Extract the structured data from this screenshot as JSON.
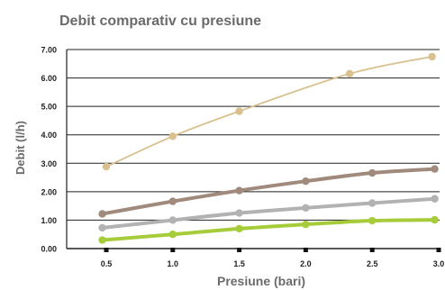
{
  "chart_data": {
    "type": "line",
    "title": "Debit comparativ cu presiune",
    "xlabel": "Presiune (bari)",
    "ylabel": "Debit (l/h)",
    "x_ticks": [
      "0.5",
      "1.0",
      "1.5",
      "2.0",
      "2.5",
      "3.0"
    ],
    "y_ticks": [
      "0.00",
      "1.00",
      "2.00",
      "3.00",
      "4.00",
      "5.00",
      "6.00",
      "7.00"
    ],
    "xlim": [
      0.5,
      3.0
    ],
    "ylim": [
      0,
      7
    ],
    "grid": "horizontal",
    "legend": "none",
    "series": [
      {
        "color": "#d8c08f",
        "line_width": "thin",
        "points": [
          [
            0.5,
            2.88
          ],
          [
            1.0,
            3.95
          ],
          [
            1.5,
            4.83
          ],
          [
            2.33,
            6.15
          ],
          [
            2.95,
            6.75
          ]
        ]
      },
      {
        "color": "#a08a7c",
        "line_width": "thick",
        "points": [
          [
            0.47,
            1.22
          ],
          [
            1.0,
            1.66
          ],
          [
            1.5,
            2.04
          ],
          [
            2.0,
            2.37
          ],
          [
            2.5,
            2.66
          ],
          [
            2.97,
            2.8
          ]
        ]
      },
      {
        "color": "#b2b2b2",
        "line_width": "thick",
        "points": [
          [
            0.47,
            0.73
          ],
          [
            1.0,
            1.0
          ],
          [
            1.5,
            1.25
          ],
          [
            2.0,
            1.43
          ],
          [
            2.5,
            1.6
          ],
          [
            2.97,
            1.75
          ]
        ]
      },
      {
        "color": "#a6cc3a",
        "line_width": "thick",
        "points": [
          [
            0.47,
            0.3
          ],
          [
            1.0,
            0.5
          ],
          [
            1.5,
            0.7
          ],
          [
            2.0,
            0.85
          ],
          [
            2.5,
            0.98
          ],
          [
            2.97,
            1.01
          ]
        ]
      }
    ]
  }
}
